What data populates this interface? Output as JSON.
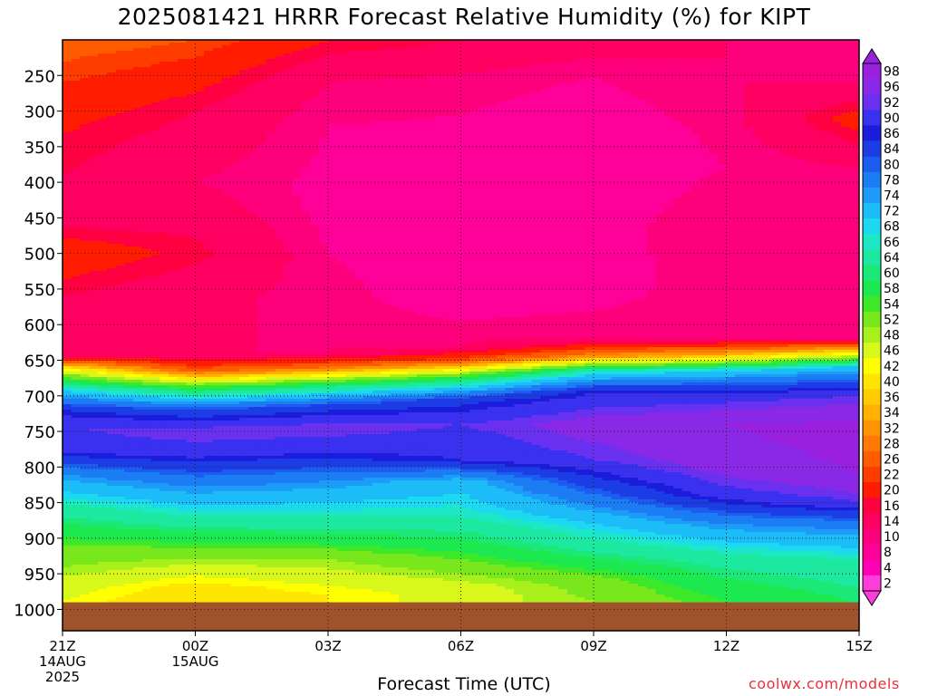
{
  "title": "2025081421 HRRR Forecast Relative Humidity (%) for KIPT",
  "credit": "coolwx.com/models",
  "chart_data": {
    "type": "heatmap",
    "title": "2025081421 HRRR Forecast Relative Humidity (%) for KIPT",
    "xlabel": "Forecast Time (UTC)",
    "ylabel": "",
    "x_unit": "hours",
    "x_range": [
      0,
      18
    ],
    "y_range": [
      1030,
      200
    ],
    "y_ticks": [
      250,
      300,
      350,
      400,
      450,
      500,
      550,
      600,
      650,
      700,
      750,
      800,
      850,
      900,
      950,
      1000
    ],
    "x_ticks": [
      {
        "x": 0,
        "lines": [
          "21Z",
          "14AUG",
          "2025"
        ]
      },
      {
        "x": 3,
        "lines": [
          "00Z",
          "15AUG"
        ]
      },
      {
        "x": 6,
        "lines": [
          "03Z"
        ]
      },
      {
        "x": 9,
        "lines": [
          "06Z"
        ]
      },
      {
        "x": 12,
        "lines": [
          "09Z"
        ]
      },
      {
        "x": 15,
        "lines": [
          "12Z"
        ]
      },
      {
        "x": 18,
        "lines": [
          "15Z"
        ]
      }
    ],
    "grid": true,
    "ground_pressure": 990,
    "colorbar": {
      "labels": [
        "98",
        "96",
        "92",
        "90",
        "86",
        "84",
        "80",
        "78",
        "74",
        "72",
        "68",
        "66",
        "64",
        "60",
        "58",
        "54",
        "52",
        "48",
        "46",
        "42",
        "40",
        "36",
        "34",
        "32",
        "28",
        "26",
        "22",
        "20",
        "16",
        "14",
        "10",
        "8",
        "4",
        "2"
      ],
      "colors": [
        "#9a20e0",
        "#8a28e8",
        "#6a30f0",
        "#3a30f0",
        "#1c1cdc",
        "#1c3ce6",
        "#1c5cf0",
        "#1c7cf4",
        "#1c9cf8",
        "#1cbcf8",
        "#1cd8f0",
        "#1ce8c8",
        "#1ce8a0",
        "#1ce878",
        "#1ce850",
        "#3ce828",
        "#78e81c",
        "#a8f01c",
        "#d8f81c",
        "#ffff00",
        "#ffe600",
        "#ffcc00",
        "#ffb000",
        "#ff9400",
        "#ff7800",
        "#ff5c00",
        "#ff3c00",
        "#ff1c00",
        "#ff0040",
        "#ff0060",
        "#ff007c",
        "#ff0098",
        "#ff00b4",
        "#ff3cdc"
      ]
    },
    "profiles": [
      {
        "x": 0,
        "rh": [
          [
            200,
            24
          ],
          [
            260,
            20
          ],
          [
            330,
            16
          ],
          [
            450,
            12
          ],
          [
            500,
            19
          ],
          [
            560,
            14
          ],
          [
            620,
            10
          ],
          [
            645,
            14
          ],
          [
            665,
            44
          ],
          [
            690,
            66
          ],
          [
            720,
            84
          ],
          [
            745,
            90
          ],
          [
            780,
            86
          ],
          [
            810,
            74
          ],
          [
            860,
            62
          ],
          [
            910,
            52
          ],
          [
            970,
            44
          ],
          [
            990,
            42
          ]
        ]
      },
      {
        "x": 3,
        "rh": [
          [
            200,
            22
          ],
          [
            250,
            18
          ],
          [
            300,
            14
          ],
          [
            400,
            10
          ],
          [
            500,
            15
          ],
          [
            560,
            11
          ],
          [
            640,
            10
          ],
          [
            665,
            24
          ],
          [
            690,
            56
          ],
          [
            720,
            80
          ],
          [
            750,
            92
          ],
          [
            780,
            88
          ],
          [
            820,
            76
          ],
          [
            870,
            64
          ],
          [
            920,
            50
          ],
          [
            970,
            38
          ],
          [
            990,
            36
          ]
        ]
      },
      {
        "x": 6,
        "rh": [
          [
            200,
            16
          ],
          [
            260,
            10
          ],
          [
            320,
            8
          ],
          [
            430,
            7
          ],
          [
            500,
            8
          ],
          [
            560,
            9
          ],
          [
            640,
            10
          ],
          [
            660,
            26
          ],
          [
            685,
            58
          ],
          [
            715,
            82
          ],
          [
            745,
            92
          ],
          [
            780,
            86
          ],
          [
            820,
            74
          ],
          [
            880,
            62
          ],
          [
            930,
            48
          ],
          [
            980,
            40
          ],
          [
            990,
            40
          ]
        ]
      },
      {
        "x": 9,
        "rh": [
          [
            200,
            14
          ],
          [
            260,
            9
          ],
          [
            350,
            7
          ],
          [
            430,
            7
          ],
          [
            520,
            6
          ],
          [
            560,
            6
          ],
          [
            630,
            10
          ],
          [
            650,
            22
          ],
          [
            675,
            56
          ],
          [
            705,
            82
          ],
          [
            740,
            90
          ],
          [
            790,
            86
          ],
          [
            820,
            70
          ],
          [
            870,
            64
          ],
          [
            920,
            54
          ],
          [
            970,
            44
          ],
          [
            990,
            44
          ]
        ]
      },
      {
        "x": 12,
        "rh": [
          [
            200,
            12
          ],
          [
            250,
            8
          ],
          [
            340,
            6
          ],
          [
            400,
            6
          ],
          [
            500,
            7
          ],
          [
            560,
            7
          ],
          [
            620,
            10
          ],
          [
            645,
            30
          ],
          [
            665,
            64
          ],
          [
            695,
            86
          ],
          [
            740,
            94
          ],
          [
            790,
            90
          ],
          [
            830,
            80
          ],
          [
            870,
            70
          ],
          [
            920,
            60
          ],
          [
            960,
            50
          ],
          [
            990,
            48
          ]
        ]
      },
      {
        "x": 15,
        "rh": [
          [
            200,
            10
          ],
          [
            260,
            10
          ],
          [
            300,
            9
          ],
          [
            380,
            8
          ],
          [
            460,
            10
          ],
          [
            520,
            9
          ],
          [
            620,
            10
          ],
          [
            645,
            36
          ],
          [
            665,
            68
          ],
          [
            700,
            88
          ],
          [
            740,
            96
          ],
          [
            800,
            94
          ],
          [
            840,
            88
          ],
          [
            880,
            74
          ],
          [
            930,
            62
          ],
          [
            970,
            56
          ],
          [
            990,
            54
          ]
        ]
      },
      {
        "x": 18,
        "rh": [
          [
            200,
            10
          ],
          [
            260,
            10
          ],
          [
            310,
            18
          ],
          [
            380,
            10
          ],
          [
            460,
            10
          ],
          [
            520,
            10
          ],
          [
            620,
            10
          ],
          [
            640,
            40
          ],
          [
            660,
            70
          ],
          [
            700,
            90
          ],
          [
            745,
            98
          ],
          [
            810,
            96
          ],
          [
            850,
            90
          ],
          [
            880,
            76
          ],
          [
            930,
            64
          ],
          [
            970,
            60
          ],
          [
            990,
            58
          ]
        ]
      }
    ]
  }
}
